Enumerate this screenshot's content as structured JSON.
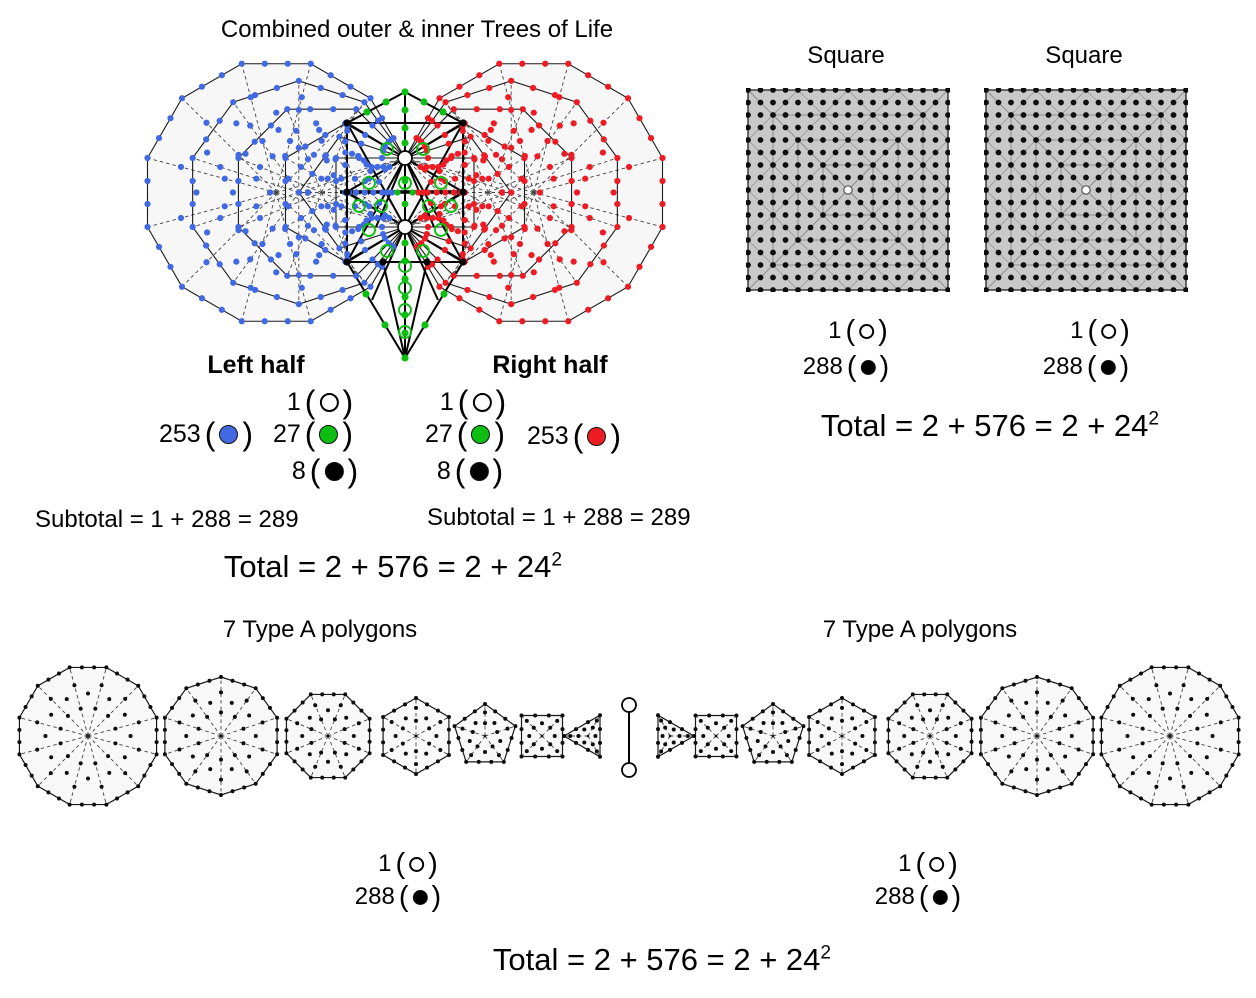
{
  "title": "Combined outer & inner Trees of Life",
  "colors": {
    "blue": "#4169e1",
    "green": "#0cbe12",
    "red": "#ed1c24",
    "black": "#000000",
    "gray_triangle": "#c9c9c9",
    "line": "#000000"
  },
  "legend_symbols": {
    "open": "(",
    "close": ")"
  },
  "tree_section": {
    "left_label": "Left half",
    "right_label": "Right half",
    "left_legend": [
      {
        "value": "1",
        "dot": "open"
      },
      {
        "value": "253",
        "dot": "blue"
      },
      {
        "value": "27",
        "dot": "green"
      },
      {
        "value": "8",
        "dot": "black"
      }
    ],
    "right_legend": [
      {
        "value": "1",
        "dot": "open"
      },
      {
        "value": "27",
        "dot": "green"
      },
      {
        "value": "253",
        "dot": "red"
      },
      {
        "value": "8",
        "dot": "black"
      }
    ],
    "left_subtotal": "Subtotal = 1 + 288 = 289",
    "right_subtotal": "Subtotal = 1 + 288 = 289",
    "total_base": "Total = 2 + 576 = 2 + 24",
    "total_exponent": "2"
  },
  "squares_section": {
    "label_1": "Square",
    "label_2": "Square",
    "legend": [
      {
        "value": "1",
        "dot": "open"
      },
      {
        "value": "288",
        "dot": "black"
      }
    ],
    "total_base": "Total = 2 + 576 = 2 + 24",
    "total_exponent": "2"
  },
  "polygons_section": {
    "label_1": "7 Type A polygons",
    "label_2": "7 Type A polygons",
    "polygon_sides": [
      12,
      10,
      8,
      6,
      5,
      4,
      3
    ],
    "legend": [
      {
        "value": "1",
        "dot": "open"
      },
      {
        "value": "288",
        "dot": "black"
      }
    ],
    "total_base": "Total = 2 + 576 = 2 + 24",
    "total_exponent": "2"
  }
}
